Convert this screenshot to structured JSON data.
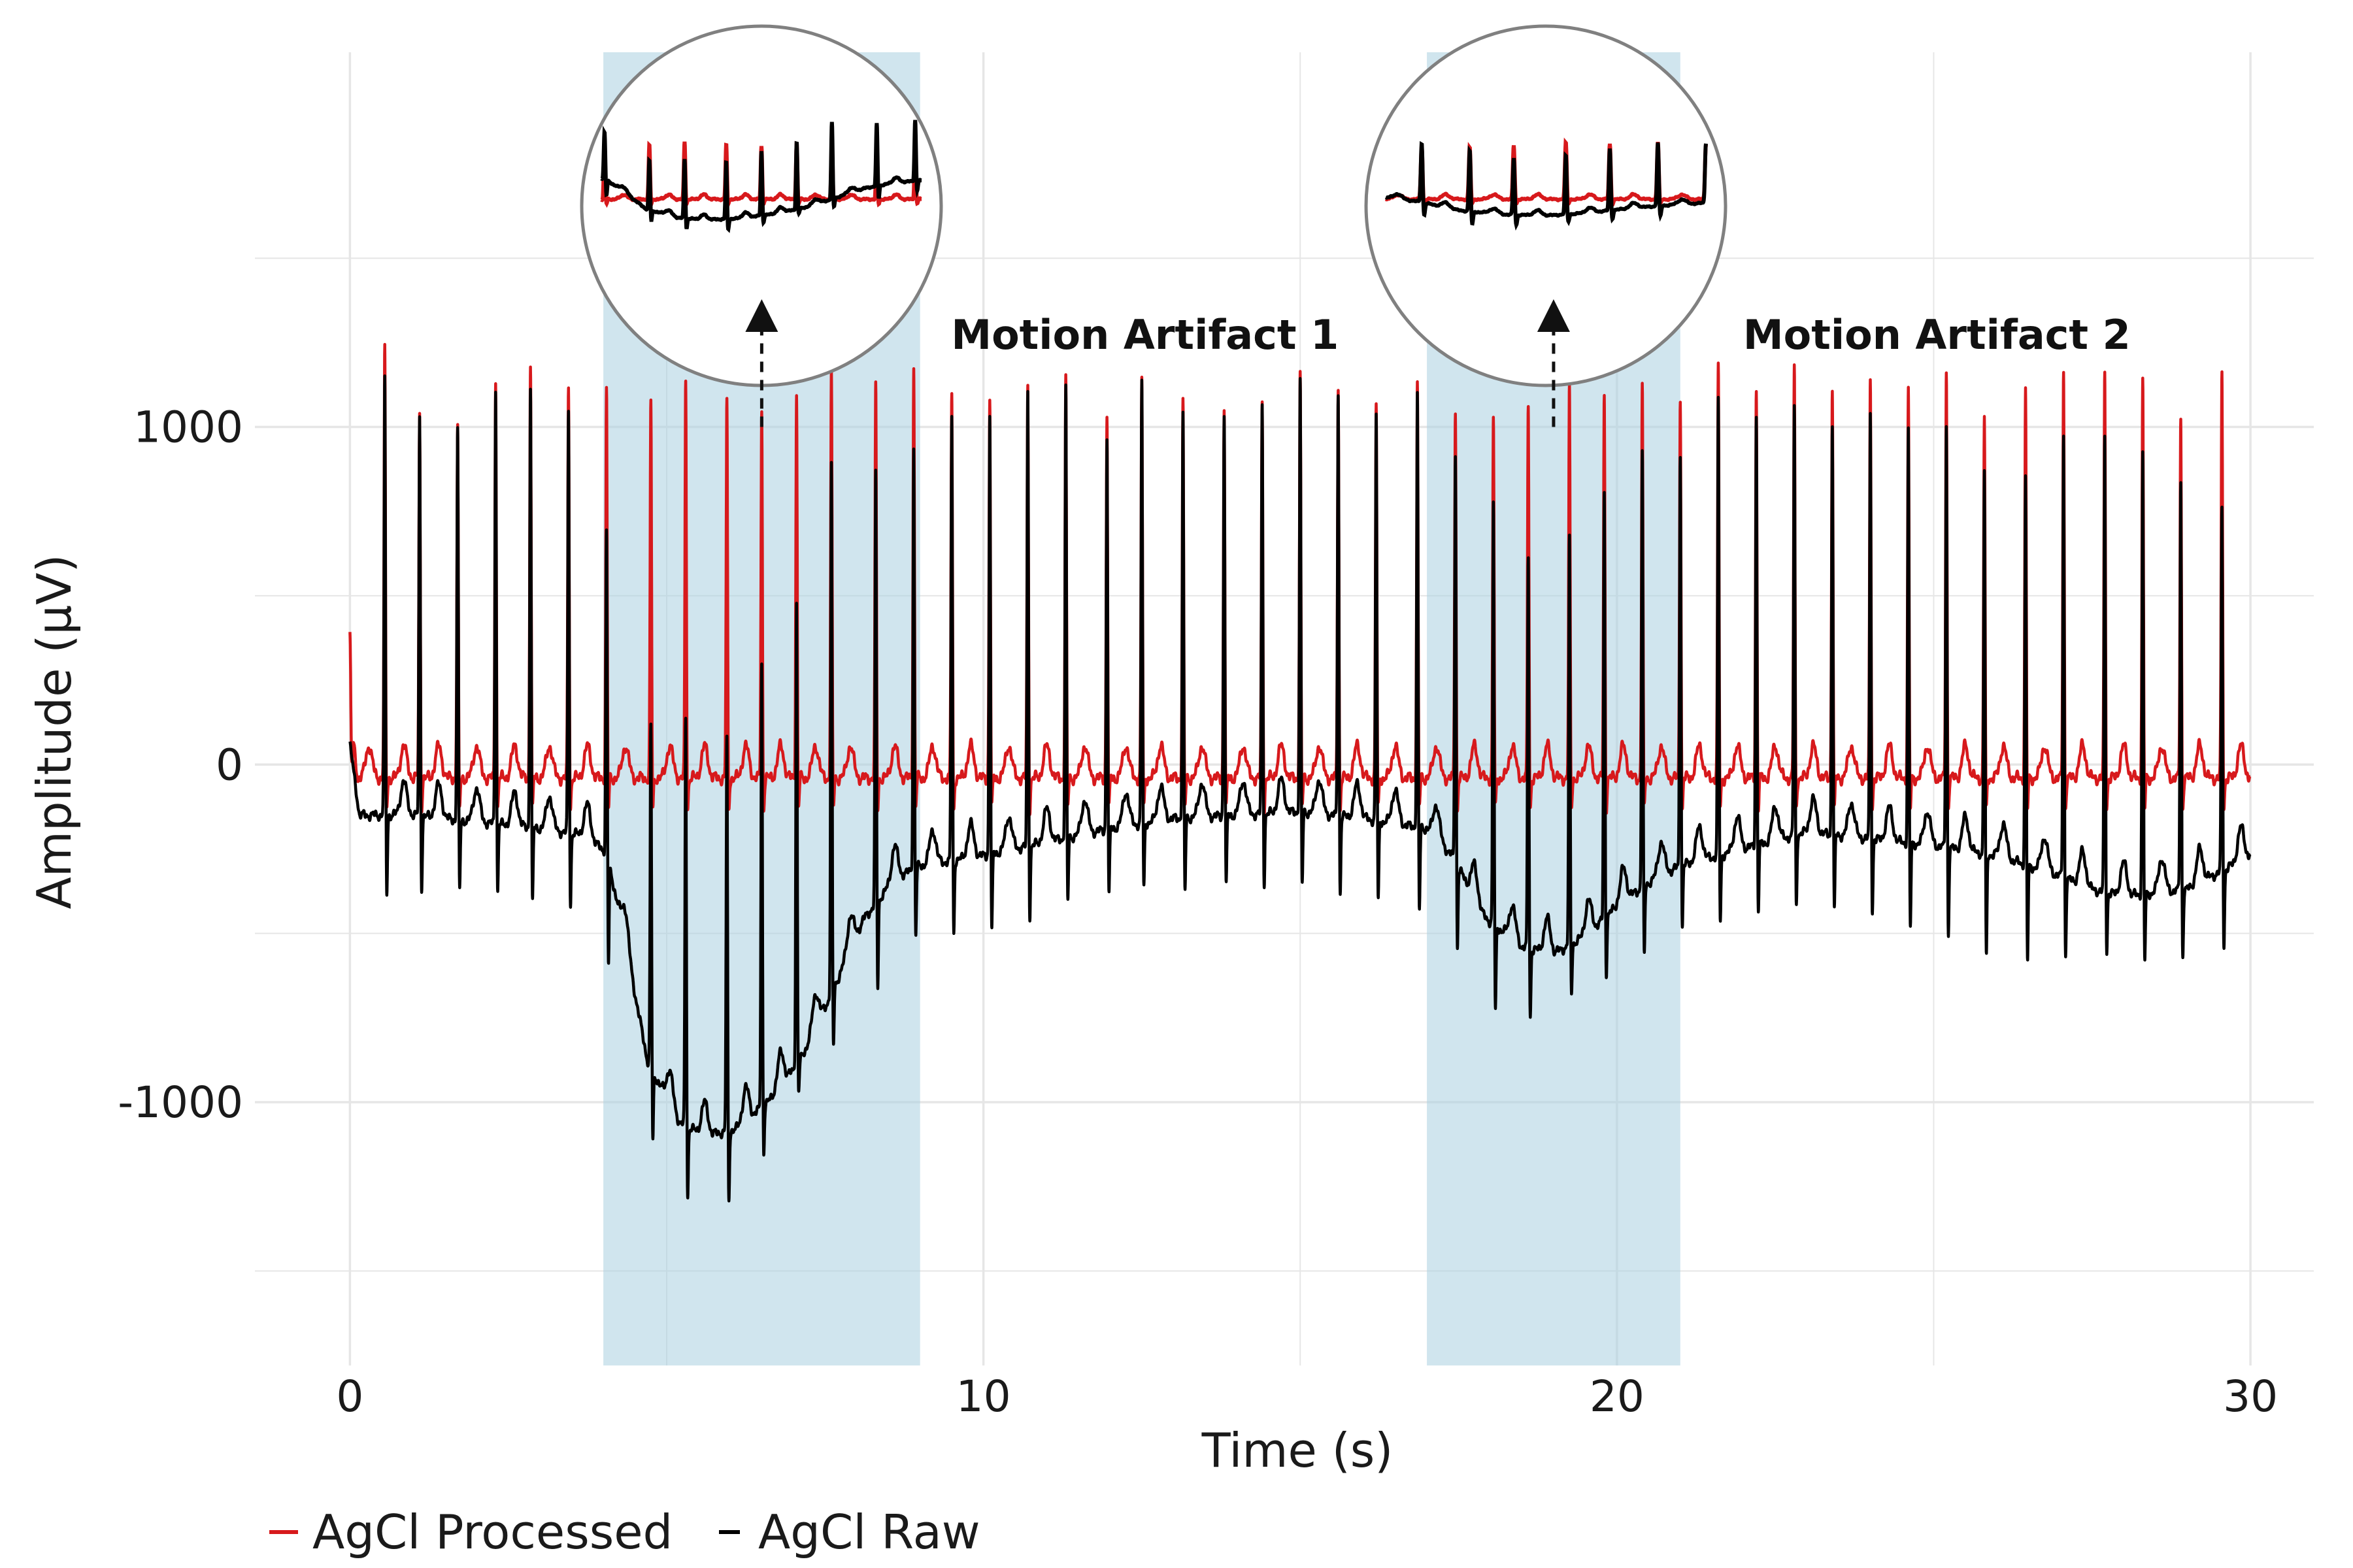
{
  "chart_data": {
    "type": "line",
    "xlabel": "Time (s)",
    "ylabel": "Amplitude (µV)",
    "xlim": [
      -1.5,
      31.0
    ],
    "ylim": [
      -1780,
      2110
    ],
    "x_ticks": [
      0,
      10,
      20,
      30
    ],
    "x_tick_labels": [
      "0",
      "10",
      "20",
      "30"
    ],
    "y_ticks": [
      -1000,
      0,
      1000
    ],
    "y_tick_labels": [
      "-1000",
      "0",
      "1000"
    ],
    "x_minor_grid": [
      5,
      15,
      25
    ],
    "y_minor_grid": [
      -1500,
      -500,
      500,
      1500
    ],
    "grid": true,
    "legend_position": "bottom-left",
    "colors": {
      "processed": "#d7191c",
      "raw": "#000000",
      "shade": "#a9cfe0",
      "grid": "#e6e6e6",
      "annotation_arrow": "#111111",
      "lens_border": "#808080"
    },
    "shaded_regions": [
      {
        "x": [
          4.0,
          9.0
        ]
      },
      {
        "x": [
          17.0,
          21.0
        ]
      }
    ],
    "annotations": [
      {
        "text": "Motion Artifact 1",
        "x": 6.5,
        "y": 1270,
        "lens_center": [
          6.5,
          1500
        ],
        "arrow_from_y": 1000,
        "arrow_to_y": 1330
      },
      {
        "text": "Motion Artifact 2",
        "x": 19.0,
        "y": 1270,
        "lens_center": [
          19.0,
          1500
        ],
        "arrow_from_y": 1000,
        "arrow_to_y": 1330
      }
    ],
    "series": [
      {
        "name": "AgCl Processed",
        "color": "#d7191c",
        "baseline": -40,
        "r_peaks": [
          [
            0.0,
            190
          ],
          [
            0.55,
            1230
          ],
          [
            1.1,
            1040
          ],
          [
            1.7,
            1010
          ],
          [
            2.3,
            1150
          ],
          [
            2.85,
            1200
          ],
          [
            3.45,
            1120
          ],
          [
            4.05,
            1120
          ],
          [
            4.75,
            1080
          ],
          [
            5.3,
            1140
          ],
          [
            5.95,
            1080
          ],
          [
            6.5,
            1050
          ],
          [
            7.05,
            1100
          ],
          [
            7.6,
            1170
          ],
          [
            8.3,
            1130
          ],
          [
            8.9,
            1180
          ],
          [
            9.5,
            1110
          ],
          [
            10.1,
            1090
          ],
          [
            10.7,
            1130
          ],
          [
            11.3,
            1150
          ],
          [
            11.95,
            1040
          ],
          [
            12.5,
            1150
          ],
          [
            13.15,
            1080
          ],
          [
            13.8,
            1060
          ],
          [
            14.4,
            1080
          ],
          [
            15.0,
            1160
          ],
          [
            15.6,
            1130
          ],
          [
            16.2,
            1070
          ],
          [
            16.85,
            1130
          ],
          [
            17.45,
            1060
          ],
          [
            18.05,
            1030
          ],
          [
            18.6,
            1070
          ],
          [
            19.25,
            1120
          ],
          [
            19.8,
            1100
          ],
          [
            20.4,
            1130
          ],
          [
            21.0,
            1100
          ],
          [
            21.6,
            1180
          ],
          [
            22.2,
            1120
          ],
          [
            22.8,
            1180
          ],
          [
            23.4,
            1130
          ],
          [
            24.0,
            1140
          ],
          [
            24.6,
            1120
          ],
          [
            25.2,
            1170
          ],
          [
            25.8,
            1040
          ],
          [
            26.45,
            1120
          ],
          [
            27.05,
            1170
          ],
          [
            27.7,
            1160
          ],
          [
            28.3,
            1150
          ],
          [
            28.9,
            1030
          ],
          [
            29.55,
            1160
          ]
        ]
      },
      {
        "name": "AgCl Raw",
        "color": "#000000",
        "baseline_knots": [
          [
            0.0,
            60
          ],
          [
            0.15,
            -150
          ],
          [
            1.0,
            -150
          ],
          [
            2.0,
            -170
          ],
          [
            3.0,
            -190
          ],
          [
            3.7,
            -210
          ],
          [
            4.05,
            -260
          ],
          [
            4.3,
            -480
          ],
          [
            4.7,
            -880
          ],
          [
            5.2,
            -1060
          ],
          [
            5.6,
            -1100
          ],
          [
            6.1,
            -1080
          ],
          [
            6.6,
            -1000
          ],
          [
            7.1,
            -880
          ],
          [
            7.6,
            -680
          ],
          [
            8.1,
            -460
          ],
          [
            8.6,
            -340
          ],
          [
            9.0,
            -300
          ],
          [
            10.0,
            -270
          ],
          [
            11.0,
            -230
          ],
          [
            12.0,
            -190
          ],
          [
            13.0,
            -160
          ],
          [
            14.0,
            -150
          ],
          [
            15.0,
            -140
          ],
          [
            16.0,
            -160
          ],
          [
            17.0,
            -190
          ],
          [
            17.4,
            -270
          ],
          [
            17.9,
            -450
          ],
          [
            18.5,
            -540
          ],
          [
            19.0,
            -560
          ],
          [
            19.5,
            -510
          ],
          [
            20.0,
            -420
          ],
          [
            20.5,
            -350
          ],
          [
            21.0,
            -300
          ],
          [
            22.0,
            -250
          ],
          [
            23.0,
            -200
          ],
          [
            24.0,
            -220
          ],
          [
            25.0,
            -240
          ],
          [
            26.0,
            -270
          ],
          [
            27.0,
            -330
          ],
          [
            27.5,
            -370
          ],
          [
            28.0,
            -390
          ],
          [
            29.0,
            -370
          ],
          [
            30.0,
            -270
          ]
        ],
        "r_peaks": [
          [
            0.55,
            1140
          ],
          [
            1.1,
            1030
          ],
          [
            1.7,
            1000
          ],
          [
            2.3,
            1120
          ],
          [
            2.85,
            1130
          ],
          [
            3.45,
            1050
          ],
          [
            4.05,
            700
          ],
          [
            4.75,
            120
          ],
          [
            5.3,
            140
          ],
          [
            5.95,
            80
          ],
          [
            6.5,
            300
          ],
          [
            7.05,
            480
          ],
          [
            7.6,
            890
          ],
          [
            8.3,
            870
          ],
          [
            8.9,
            940
          ],
          [
            9.5,
            1040
          ],
          [
            10.1,
            1040
          ],
          [
            10.7,
            1110
          ],
          [
            11.3,
            1120
          ],
          [
            11.95,
            970
          ],
          [
            12.5,
            1140
          ],
          [
            13.15,
            1040
          ],
          [
            13.8,
            1040
          ],
          [
            14.4,
            1070
          ],
          [
            15.0,
            1140
          ],
          [
            15.6,
            1110
          ],
          [
            16.2,
            1040
          ],
          [
            16.85,
            1100
          ],
          [
            17.45,
            930
          ],
          [
            18.05,
            780
          ],
          [
            18.6,
            620
          ],
          [
            19.25,
            670
          ],
          [
            19.8,
            810
          ],
          [
            20.4,
            930
          ],
          [
            21.0,
            930
          ],
          [
            21.6,
            1080
          ],
          [
            22.2,
            1040
          ],
          [
            22.8,
            1060
          ],
          [
            23.4,
            1020
          ],
          [
            24.0,
            1040
          ],
          [
            24.6,
            1000
          ],
          [
            25.2,
            1010
          ],
          [
            25.8,
            880
          ],
          [
            26.45,
            860
          ],
          [
            27.05,
            980
          ],
          [
            27.7,
            970
          ],
          [
            28.3,
            930
          ],
          [
            28.9,
            840
          ],
          [
            29.55,
            760
          ]
        ],
        "s_troughs": [
          [
            0.55,
            -410
          ],
          [
            1.1,
            -390
          ],
          [
            1.7,
            -390
          ],
          [
            2.3,
            -400
          ],
          [
            2.85,
            -430
          ],
          [
            3.45,
            -440
          ],
          [
            4.05,
            -610
          ],
          [
            4.75,
            -1130
          ],
          [
            5.3,
            -1300
          ],
          [
            5.95,
            -1310
          ],
          [
            6.5,
            -1170
          ],
          [
            7.05,
            -990
          ],
          [
            7.6,
            -860
          ],
          [
            8.3,
            -680
          ],
          [
            8.9,
            -530
          ],
          [
            9.5,
            -520
          ],
          [
            10.1,
            -520
          ],
          [
            10.7,
            -470
          ],
          [
            11.3,
            -430
          ],
          [
            11.95,
            -410
          ],
          [
            12.5,
            -390
          ],
          [
            13.15,
            -400
          ],
          [
            13.8,
            -380
          ],
          [
            14.4,
            -370
          ],
          [
            15.0,
            -380
          ],
          [
            15.6,
            -400
          ],
          [
            16.2,
            -430
          ],
          [
            16.85,
            -460
          ],
          [
            17.45,
            -560
          ],
          [
            18.05,
            -760
          ],
          [
            18.6,
            -770
          ],
          [
            19.25,
            -700
          ],
          [
            19.8,
            -640
          ],
          [
            20.4,
            -590
          ],
          [
            21.0,
            -500
          ],
          [
            21.6,
            -490
          ],
          [
            22.2,
            -450
          ],
          [
            22.8,
            -440
          ],
          [
            23.4,
            -450
          ],
          [
            24.0,
            -460
          ],
          [
            24.6,
            -500
          ],
          [
            25.2,
            -530
          ],
          [
            25.8,
            -590
          ],
          [
            26.45,
            -600
          ],
          [
            27.05,
            -590
          ],
          [
            27.7,
            -580
          ],
          [
            28.3,
            -600
          ],
          [
            28.9,
            -590
          ],
          [
            29.55,
            -560
          ]
        ]
      }
    ]
  }
}
